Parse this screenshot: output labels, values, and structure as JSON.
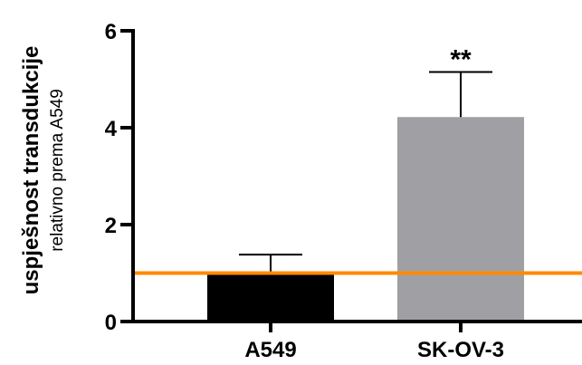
{
  "chart_data": {
    "type": "bar",
    "categories": [
      "A549",
      "SK-OV-3"
    ],
    "values": [
      1.0,
      4.22
    ],
    "errors": [
      0.38,
      0.93
    ],
    "bar_colors": [
      "#000000",
      "#a0a0a4"
    ],
    "significance": [
      "",
      "**"
    ],
    "ylabel": "uspješnost transdukcije",
    "ylabel_sub": "relativno prema A549",
    "ylim": [
      0,
      6
    ],
    "yticks": [
      0,
      2,
      4,
      6
    ],
    "reference_line": {
      "y": 1,
      "color": "#ff8a00"
    },
    "axis_color": "#000000",
    "grid": false
  }
}
